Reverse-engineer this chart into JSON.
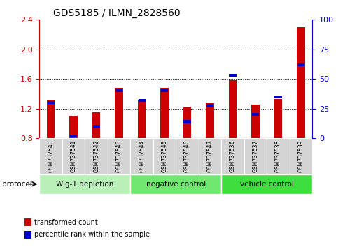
{
  "title": "GDS5185 / ILMN_2828560",
  "samples": [
    "GSM737540",
    "GSM737541",
    "GSM737542",
    "GSM737543",
    "GSM737544",
    "GSM737545",
    "GSM737546",
    "GSM737547",
    "GSM737536",
    "GSM737537",
    "GSM737538",
    "GSM737539"
  ],
  "red_values": [
    1.31,
    1.1,
    1.15,
    1.48,
    1.31,
    1.48,
    1.23,
    1.27,
    1.58,
    1.25,
    1.33,
    2.3
  ],
  "blue_percentile": [
    30,
    2,
    10,
    40,
    32,
    40,
    14,
    28,
    53,
    20,
    35,
    62
  ],
  "groups": [
    {
      "label": "Wig-1 depletion",
      "start": 0,
      "end": 4,
      "color": "#b8f0b8"
    },
    {
      "label": "negative control",
      "start": 4,
      "end": 8,
      "color": "#70e870"
    },
    {
      "label": "vehicle control",
      "start": 8,
      "end": 12,
      "color": "#3fde3f"
    }
  ],
  "ylim_left": [
    0.8,
    2.4
  ],
  "ylim_right": [
    0,
    100
  ],
  "yticks_left": [
    0.8,
    1.2,
    1.6,
    2.0,
    2.4
  ],
  "yticks_right": [
    0,
    25,
    50,
    75,
    100
  ],
  "left_color": "#cc0000",
  "right_color": "#0000cc",
  "bar_color": "#cc0000",
  "blue_color": "#0000cc",
  "bar_bottom": 0.8,
  "bar_width": 0.35,
  "protocol_label": "protocol",
  "legend_items": [
    {
      "label": "transformed count",
      "color": "#cc0000"
    },
    {
      "label": "percentile rank within the sample",
      "color": "#0000cc"
    }
  ]
}
